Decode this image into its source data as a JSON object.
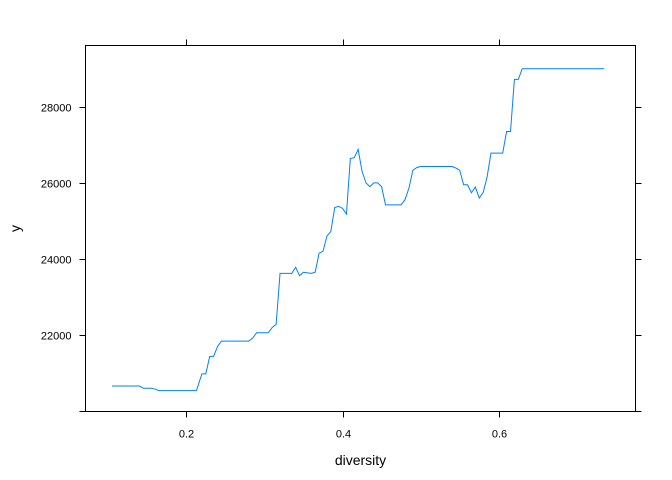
{
  "chart_data": {
    "type": "line",
    "title": "",
    "xlabel": "diversity",
    "ylabel": "y",
    "xlim": [
      0.071,
      0.775
    ],
    "ylim": [
      19990,
      29610
    ],
    "x_ticks": [
      0.2,
      0.4,
      0.6
    ],
    "x_tick_labels": [
      "0.2",
      "0.4",
      "0.6"
    ],
    "y_ticks": [
      20000,
      22000,
      24000,
      26000,
      28000
    ],
    "y_tick_labels": [
      "",
      "22000",
      "24000",
      "26000",
      "28000"
    ],
    "grid": false,
    "line_color": "#0080ff",
    "series": [
      {
        "x": [
          0.105,
          0.115,
          0.125,
          0.14,
          0.145,
          0.155,
          0.16,
          0.165,
          0.175,
          0.185,
          0.195,
          0.205,
          0.213,
          0.22,
          0.225,
          0.23,
          0.235,
          0.24,
          0.245,
          0.25,
          0.26,
          0.27,
          0.28,
          0.285,
          0.29,
          0.3,
          0.305,
          0.31,
          0.315,
          0.32,
          0.325,
          0.33,
          0.335,
          0.34,
          0.345,
          0.35,
          0.36,
          0.365,
          0.37,
          0.375,
          0.38,
          0.385,
          0.39,
          0.395,
          0.4,
          0.405,
          0.41,
          0.415,
          0.42,
          0.425,
          0.43,
          0.435,
          0.44,
          0.445,
          0.45,
          0.455,
          0.46,
          0.465,
          0.47,
          0.475,
          0.48,
          0.485,
          0.49,
          0.495,
          0.5,
          0.505,
          0.51,
          0.515,
          0.52,
          0.53,
          0.54,
          0.545,
          0.55,
          0.555,
          0.56,
          0.565,
          0.57,
          0.575,
          0.58,
          0.585,
          0.59,
          0.595,
          0.6,
          0.605,
          0.61,
          0.615,
          0.62,
          0.625,
          0.63,
          0.635,
          0.64,
          0.645,
          0.65,
          0.66,
          0.7,
          0.735
        ],
        "values": [
          20660,
          20660,
          20660,
          20660,
          20600,
          20600,
          20580,
          20540,
          20540,
          20540,
          20540,
          20540,
          20540,
          20980,
          20980,
          21440,
          21440,
          21700,
          21840,
          21840,
          21840,
          21840,
          21840,
          21920,
          22060,
          22060,
          22060,
          22200,
          22280,
          23620,
          23620,
          23620,
          23620,
          23780,
          23560,
          23650,
          23620,
          23650,
          24150,
          24200,
          24600,
          24720,
          25350,
          25380,
          25330,
          25180,
          26640,
          26660,
          26880,
          26300,
          26000,
          25900,
          26000,
          26000,
          25900,
          25420,
          25420,
          25420,
          25420,
          25420,
          25560,
          25860,
          26330,
          26400,
          26430,
          26430,
          26430,
          26430,
          26430,
          26430,
          26430,
          26390,
          26330,
          25950,
          25950,
          25740,
          25890,
          25600,
          25750,
          26150,
          26780,
          26780,
          26780,
          26780,
          27350,
          27350,
          28720,
          28720,
          29000,
          29000,
          29000,
          29000,
          29000,
          29000,
          29000,
          29000
        ]
      }
    ]
  }
}
